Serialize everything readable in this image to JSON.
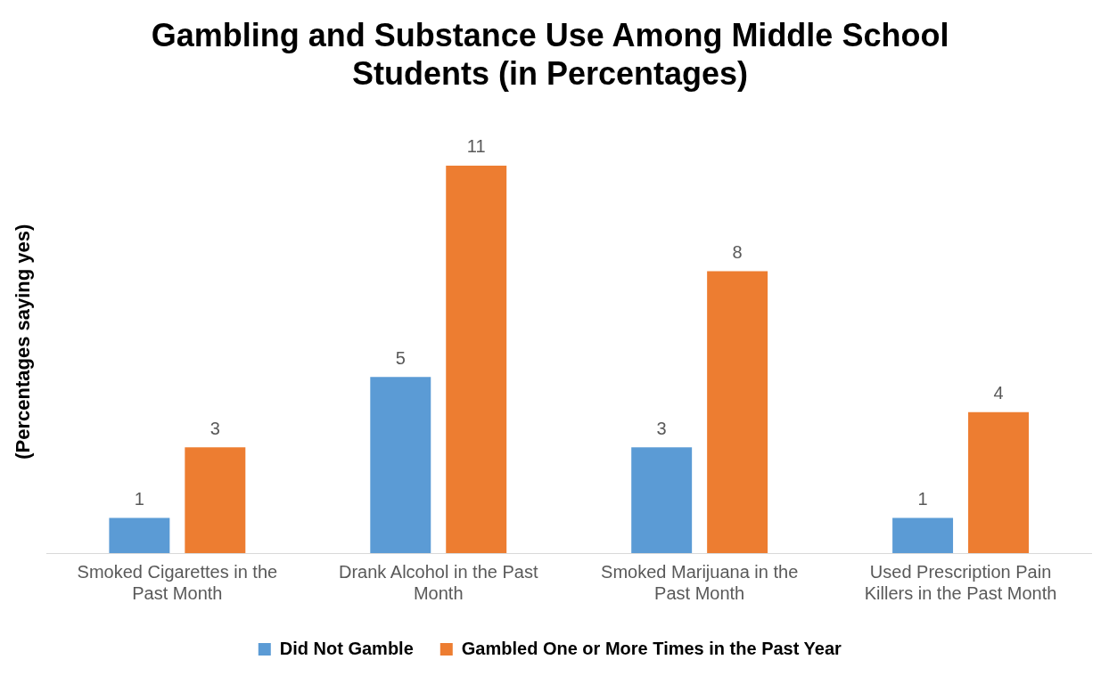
{
  "chart_data": {
    "type": "bar",
    "title": "Gambling and Substance Use Among Middle School Students (in Percentages)",
    "ylabel": "(Percentages saying yes)",
    "categories": [
      "Smoked Cigarettes in the Past Month",
      "Drank Alcohol in the Past Month",
      "Smoked Marijuana in the Past Month",
      "Used Prescription Pain Killers in the Past Month"
    ],
    "series": [
      {
        "name": "Did Not Gamble",
        "color": "#5b9bd5",
        "values": [
          1,
          5,
          3,
          1
        ]
      },
      {
        "name": "Gambled One or More Times in the Past Year",
        "color": "#ed7d31",
        "values": [
          3,
          11,
          8,
          4
        ]
      }
    ],
    "data_labels": true,
    "grid": false,
    "legend": "bottom",
    "tick_labels": "x"
  }
}
